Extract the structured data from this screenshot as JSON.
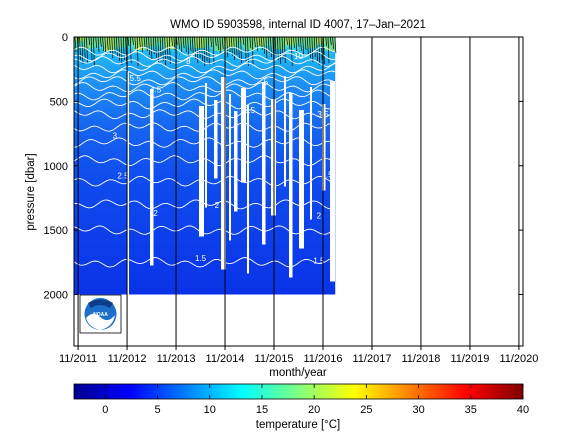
{
  "chart_data": {
    "type": "heatmap",
    "title": "WMO ID 5903598, internal ID 4007, 17–Jan–2021",
    "xlabel": "month/year",
    "ylabel": "pressure [dbar]",
    "x_ticks": [
      "11/2011",
      "11/2012",
      "11/2013",
      "11/2014",
      "11/2015",
      "11/2016",
      "11/2017",
      "11/2018",
      "11/2019",
      "11/2020"
    ],
    "xlim": [
      "2011-10",
      "2020-12"
    ],
    "y_ticks": [
      0,
      500,
      1000,
      1500,
      2000
    ],
    "ylim": [
      2400,
      0
    ],
    "y_inverted": true,
    "data_extent_pressure": [
      0,
      2000
    ],
    "data_extent_time": [
      "2011-10",
      "2017-02"
    ],
    "colorbar": {
      "label": "temperature [°C]",
      "range": [
        -3,
        40
      ],
      "ticks": [
        0,
        5,
        10,
        15,
        20,
        25,
        30,
        35,
        40
      ],
      "colormap": "jet"
    },
    "contour_labels": [
      {
        "text": "10",
        "date": "2016-05",
        "pressure": 170
      },
      {
        "text": "8",
        "date": "2014-02",
        "pressure": 210
      },
      {
        "text": "5.5",
        "date": "2013-01",
        "pressure": 340
      },
      {
        "text": "4.5",
        "date": "2013-06",
        "pressure": 430
      },
      {
        "text": "5",
        "date": "2015-09",
        "pressure": 370
      },
      {
        "text": "3.5",
        "date": "2015-05",
        "pressure": 590
      },
      {
        "text": "3.5",
        "date": "2016-11",
        "pressure": 620
      },
      {
        "text": "3",
        "date": "2012-08",
        "pressure": 790
      },
      {
        "text": "2.5",
        "date": "2012-10",
        "pressure": 1100
      },
      {
        "text": "2.5",
        "date": "2016-12",
        "pressure": 1090
      },
      {
        "text": "2",
        "date": "2014-09",
        "pressure": 1330
      },
      {
        "text": "2",
        "date": "2013-06",
        "pressure": 1390
      },
      {
        "text": "2",
        "date": "2016-10",
        "pressure": 1410
      },
      {
        "text": "1.5",
        "date": "2014-05",
        "pressure": 1740
      },
      {
        "text": "1.5",
        "date": "2016-10",
        "pressure": 1760
      }
    ],
    "grid": "vertical lines at year ticks",
    "logo": "noaa-logo"
  }
}
